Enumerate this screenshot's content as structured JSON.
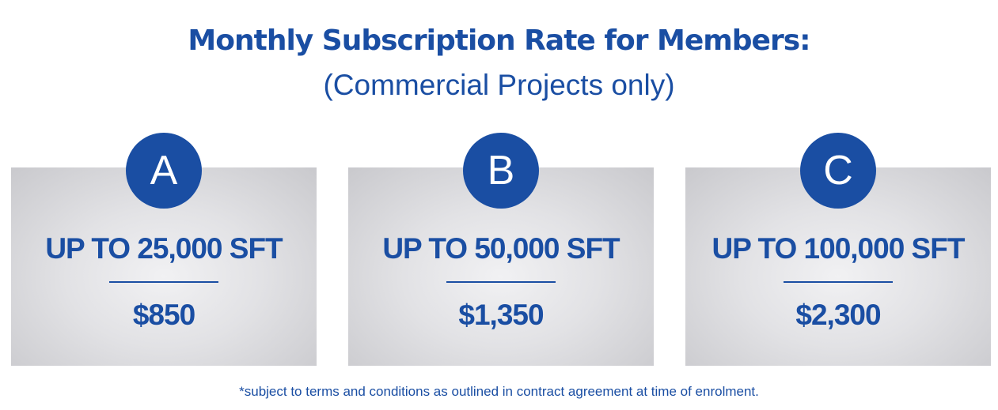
{
  "header": {
    "title": "Monthly Subscription Rate for Members:",
    "subtitle": "(Commercial Projects only)"
  },
  "plans": [
    {
      "letter": "A",
      "size": "UP TO 25,000 SFT",
      "price": "$850"
    },
    {
      "letter": "B",
      "size": "UP TO 50,000 SFT",
      "price": "$1,350"
    },
    {
      "letter": "C",
      "size": "UP TO 100,000 SFT",
      "price": "$2,300"
    }
  ],
  "footnote": "*subject to terms and conditions as outlined in contract agreement at time of enrolment.",
  "colors": {
    "brand_blue": "#1a4ea3",
    "card_gray": "#d6d6d9",
    "background": "#ffffff"
  }
}
